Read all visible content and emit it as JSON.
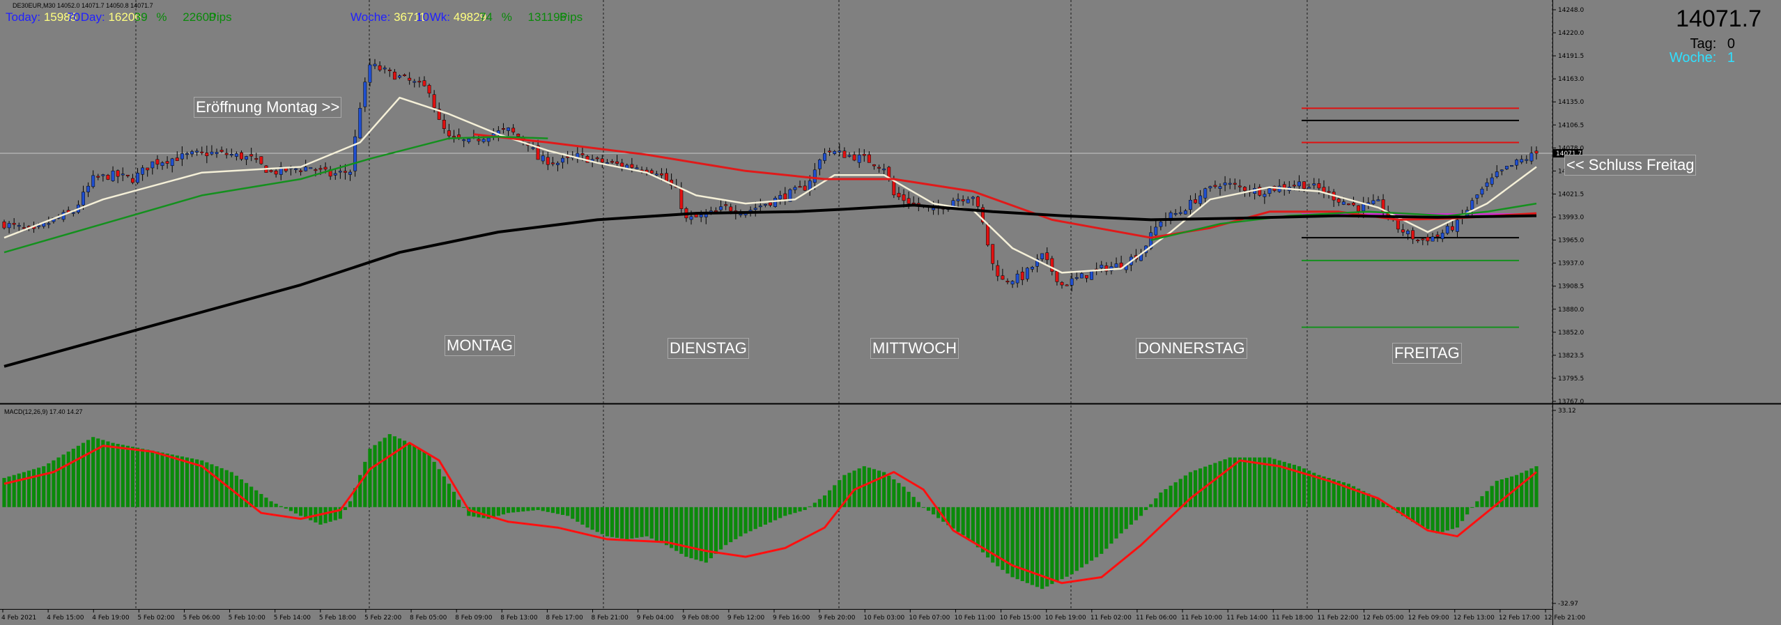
{
  "symbol_info": "DE30EUR,M30  14052.0 14071.7 14050.8 14071.7",
  "top_info": {
    "today": {
      "label": "Today:",
      "v1": "15985",
      "v2": "70",
      "day_label": "Day:",
      "v3": "16206",
      "v4": "39",
      "pct": "%",
      "v5": "22600",
      "pips": "Pips"
    },
    "week": {
      "label": "Woche:",
      "v1": "36711",
      "v2": "10",
      "wk_label": "Wk:",
      "v3": "49829",
      "v4": "74",
      "pct": "%",
      "v5": "131196",
      "pips": "Pips"
    }
  },
  "right_info": {
    "price": "14071.7",
    "tag_label": "Tag:",
    "tag_value": "0",
    "woche_label": "Woche:",
    "woche_value": "1"
  },
  "annotations": {
    "eroeffnung": "Eröffnung Montag >>",
    "schluss": "<< Schluss Freitag",
    "days": [
      "MONTAG",
      "DIENSTAG",
      "MITTWOCH",
      "DONNERSTAG",
      "FREITAG"
    ]
  },
  "macd_label": "MACD(12,26,9) 17.40 14.27",
  "colors": {
    "background": "#808080",
    "bull": "#1f4fd0",
    "bear": "#e01010",
    "ma_fast": "#f5f0d8",
    "ma_mid": "#e01a1a",
    "ma_green": "#14901e",
    "ma_slow": "#000000",
    "macd_hist": "#0a8a0a",
    "macd_signal": "#ff1010"
  },
  "chart_data": [
    {
      "type": "candlestick",
      "title": "",
      "price_axis_ticks": [
        "14248.0",
        "14220.0",
        "14191.5",
        "14163.0",
        "14135.0",
        "14106.5",
        "14078.0",
        "14050.0",
        "14021.5",
        "13993.0",
        "13965.0",
        "13937.0",
        "13908.5",
        "13880.0",
        "13852.0",
        "13823.5",
        "13795.5",
        "13767.0"
      ],
      "ylim": [
        13767.0,
        14248.0
      ],
      "last_price": 14071.7,
      "time_axis_ticks": [
        "4 Feb 2021",
        "4 Feb 15:00",
        "4 Feb 19:00",
        "5 Feb 02:00",
        "5 Feb 06:00",
        "5 Feb 10:00",
        "5 Feb 14:00",
        "5 Feb 18:00",
        "5 Feb 22:00",
        "8 Feb 05:00",
        "8 Feb 09:00",
        "8 Feb 13:00",
        "8 Feb 17:00",
        "8 Feb 21:00",
        "9 Feb 04:00",
        "9 Feb 08:00",
        "9 Feb 12:00",
        "9 Feb 16:00",
        "9 Feb 20:00",
        "10 Feb 03:00",
        "10 Feb 07:00",
        "10 Feb 11:00",
        "10 Feb 15:00",
        "10 Feb 19:00",
        "11 Feb 02:00",
        "11 Feb 06:00",
        "11 Feb 10:00",
        "11 Feb 14:00",
        "11 Feb 18:00",
        "11 Feb 22:00",
        "12 Feb 05:00",
        "12 Feb 09:00",
        "12 Feb 13:00",
        "12 Feb 17:00",
        "12 Feb 21:00"
      ],
      "close_path": [
        [
          0,
          13985
        ],
        [
          6,
          13975
        ],
        [
          10,
          13990
        ],
        [
          14,
          14000
        ],
        [
          18,
          14040
        ],
        [
          22,
          14045
        ],
        [
          26,
          14040
        ],
        [
          30,
          14060
        ],
        [
          34,
          14065
        ],
        [
          38,
          14070
        ],
        [
          42,
          14072
        ],
        [
          46,
          14070
        ],
        [
          50,
          14065
        ],
        [
          54,
          14048
        ],
        [
          58,
          14052
        ],
        [
          62,
          14055
        ],
        [
          66,
          14045
        ],
        [
          70,
          14050
        ],
        [
          72,
          14130
        ],
        [
          74,
          14180
        ],
        [
          78,
          14170
        ],
        [
          82,
          14160
        ],
        [
          86,
          14150
        ],
        [
          88,
          14110
        ],
        [
          90,
          14090
        ],
        [
          94,
          14085
        ],
        [
          98,
          14095
        ],
        [
          102,
          14100
        ],
        [
          106,
          14085
        ],
        [
          108,
          14065
        ],
        [
          112,
          14060
        ],
        [
          116,
          14068
        ],
        [
          120,
          14062
        ],
        [
          124,
          14058
        ],
        [
          128,
          14055
        ],
        [
          132,
          14050
        ],
        [
          136,
          14025
        ],
        [
          138,
          13990
        ],
        [
          142,
          13995
        ],
        [
          146,
          14005
        ],
        [
          150,
          14000
        ],
        [
          154,
          14010
        ],
        [
          158,
          14020
        ],
        [
          162,
          14030
        ],
        [
          164,
          14050
        ],
        [
          166,
          14075
        ],
        [
          170,
          14070
        ],
        [
          174,
          14065
        ],
        [
          178,
          14055
        ],
        [
          180,
          14020
        ],
        [
          184,
          14010
        ],
        [
          188,
          14000
        ],
        [
          192,
          14015
        ],
        [
          196,
          14020
        ],
        [
          198,
          13985
        ],
        [
          200,
          13935
        ],
        [
          202,
          13915
        ],
        [
          206,
          13920
        ],
        [
          210,
          13945
        ],
        [
          214,
          13910
        ],
        [
          218,
          13920
        ],
        [
          222,
          13930
        ],
        [
          226,
          13935
        ],
        [
          230,
          13950
        ],
        [
          234,
          13990
        ],
        [
          238,
          14000
        ],
        [
          242,
          14020
        ],
        [
          246,
          14035
        ],
        [
          250,
          14030
        ],
        [
          254,
          14025
        ],
        [
          258,
          14030
        ],
        [
          262,
          14035
        ],
        [
          266,
          14028
        ],
        [
          270,
          14015
        ],
        [
          274,
          14005
        ],
        [
          278,
          14010
        ],
        [
          282,
          13980
        ],
        [
          286,
          13965
        ],
        [
          290,
          13970
        ],
        [
          294,
          13985
        ],
        [
          298,
          14020
        ],
        [
          302,
          14045
        ],
        [
          306,
          14060
        ],
        [
          310,
          14071.7
        ]
      ],
      "series": [
        {
          "name": "",
          "kind": "ma",
          "points": [
            [
              0,
              13968
            ],
            [
              20,
              14015
            ],
            [
              40,
              14048
            ],
            [
              60,
              14055
            ],
            [
              72,
              14085
            ],
            [
              80,
              14140
            ],
            [
              90,
              14120
            ],
            [
              100,
              14095
            ],
            [
              110,
              14075
            ],
            [
              120,
              14060
            ],
            [
              130,
              14048
            ],
            [
              140,
              14020
            ],
            [
              150,
              14010
            ],
            [
              160,
              14015
            ],
            [
              168,
              14045
            ],
            [
              178,
              14045
            ],
            [
              188,
              14010
            ],
            [
              196,
              14002
            ],
            [
              204,
              13955
            ],
            [
              214,
              13925
            ],
            [
              226,
              13930
            ],
            [
              236,
              13975
            ],
            [
              244,
              14015
            ],
            [
              256,
              14030
            ],
            [
              266,
              14025
            ],
            [
              278,
              14005
            ],
            [
              288,
              13975
            ],
            [
              300,
              14010
            ],
            [
              310,
              14055
            ]
          ]
        },
        {
          "name": "",
          "kind": "ma",
          "points": [
            [
              95,
              14095
            ],
            [
              110,
              14085
            ],
            [
              130,
              14070
            ],
            [
              150,
              14050
            ],
            [
              166,
              14040
            ],
            [
              180,
              14040
            ],
            [
              196,
              14025
            ],
            [
              212,
              13990
            ],
            [
              232,
              13968
            ],
            [
              244,
              13980
            ],
            [
              256,
              14000
            ],
            [
              270,
              14000
            ],
            [
              282,
              13990
            ],
            [
              294,
              13992
            ],
            [
              310,
              13998
            ]
          ]
        },
        {
          "name": "",
          "kind": "ma",
          "points": [
            [
              0,
              13950
            ],
            [
              20,
              13985
            ],
            [
              40,
              14020
            ],
            [
              60,
              14040
            ],
            [
              74,
              14065
            ],
            [
              90,
              14090
            ],
            [
              100,
              14092
            ],
            [
              110,
              14090
            ]
          ]
        },
        {
          "name": "",
          "kind": "ma",
          "points": [
            [
              232,
              13965
            ],
            [
              246,
              13985
            ],
            [
              260,
              13995
            ],
            [
              276,
              14000
            ],
            [
              292,
              13995
            ],
            [
              300,
              14000
            ],
            [
              310,
              14010
            ]
          ]
        },
        {
          "name": "",
          "kind": "ma",
          "points": [
            [
              0,
              13810
            ],
            [
              30,
              13860
            ],
            [
              60,
              13910
            ],
            [
              80,
              13950
            ],
            [
              100,
              13975
            ],
            [
              120,
              13990
            ],
            [
              140,
              13998
            ],
            [
              160,
              14000
            ],
            [
              170,
              14003
            ],
            [
              184,
              14008
            ],
            [
              200,
              14000
            ],
            [
              214,
              13995
            ],
            [
              232,
              13990
            ],
            [
              250,
              13992
            ],
            [
              270,
              13995
            ],
            [
              290,
              13993
            ],
            [
              310,
              13995
            ]
          ]
        }
      ],
      "horizontal_levels": [
        {
          "price": 14127,
          "color": "#e01010"
        },
        {
          "price": 14112,
          "color": "#000000"
        },
        {
          "price": 14085,
          "color": "#e01010"
        },
        {
          "price": 13997,
          "color": "#e020e0"
        },
        {
          "price": 13968,
          "color": "#000000"
        },
        {
          "price": 13940,
          "color": "#14901e"
        },
        {
          "price": 13858,
          "color": "#14901e"
        }
      ]
    },
    {
      "type": "bar",
      "title": "MACD(12,26,9) 17.40 14.27",
      "ylim": [
        -32.97,
        33.12
      ],
      "axis_ticks": [
        "33.12",
        "-32.97"
      ],
      "histogram_path": [
        [
          0,
          10
        ],
        [
          8,
          14
        ],
        [
          14,
          20
        ],
        [
          18,
          24
        ],
        [
          22,
          22
        ],
        [
          28,
          20
        ],
        [
          34,
          18
        ],
        [
          40,
          16
        ],
        [
          46,
          12
        ],
        [
          54,
          2
        ],
        [
          60,
          -3
        ],
        [
          64,
          -6
        ],
        [
          68,
          -4
        ],
        [
          70,
          2
        ],
        [
          74,
          20
        ],
        [
          78,
          25
        ],
        [
          82,
          22
        ],
        [
          86,
          18
        ],
        [
          90,
          8
        ],
        [
          94,
          -3
        ],
        [
          98,
          -4
        ],
        [
          102,
          -2
        ],
        [
          108,
          -1
        ],
        [
          114,
          -3
        ],
        [
          118,
          -7
        ],
        [
          122,
          -10
        ],
        [
          126,
          -11
        ],
        [
          130,
          -10
        ],
        [
          134,
          -13
        ],
        [
          138,
          -17
        ],
        [
          142,
          -19
        ],
        [
          146,
          -13
        ],
        [
          150,
          -9
        ],
        [
          154,
          -6
        ],
        [
          158,
          -3
        ],
        [
          162,
          -1
        ],
        [
          166,
          4
        ],
        [
          170,
          11
        ],
        [
          174,
          14
        ],
        [
          178,
          12
        ],
        [
          182,
          7
        ],
        [
          186,
          0
        ],
        [
          190,
          -5
        ],
        [
          196,
          -12
        ],
        [
          200,
          -19
        ],
        [
          204,
          -24
        ],
        [
          210,
          -28
        ],
        [
          216,
          -23
        ],
        [
          222,
          -16
        ],
        [
          226,
          -9
        ],
        [
          230,
          -3
        ],
        [
          234,
          5
        ],
        [
          240,
          12
        ],
        [
          248,
          17
        ],
        [
          256,
          17
        ],
        [
          262,
          14
        ],
        [
          266,
          11
        ],
        [
          272,
          8
        ],
        [
          278,
          3
        ],
        [
          282,
          -2
        ],
        [
          286,
          -6
        ],
        [
          290,
          -9
        ],
        [
          294,
          -7
        ],
        [
          298,
          2
        ],
        [
          302,
          9
        ],
        [
          306,
          11
        ],
        [
          310,
          14
        ]
      ],
      "signal_path": [
        [
          0,
          8
        ],
        [
          10,
          12
        ],
        [
          20,
          21
        ],
        [
          30,
          19
        ],
        [
          40,
          14
        ],
        [
          46,
          6
        ],
        [
          52,
          -2
        ],
        [
          60,
          -4
        ],
        [
          68,
          -1
        ],
        [
          74,
          13
        ],
        [
          82,
          22
        ],
        [
          88,
          16
        ],
        [
          94,
          -1
        ],
        [
          102,
          -5
        ],
        [
          112,
          -7
        ],
        [
          122,
          -11
        ],
        [
          134,
          -12
        ],
        [
          142,
          -15
        ],
        [
          150,
          -17
        ],
        [
          158,
          -14
        ],
        [
          166,
          -7
        ],
        [
          172,
          6
        ],
        [
          180,
          12
        ],
        [
          186,
          6
        ],
        [
          192,
          -8
        ],
        [
          204,
          -20
        ],
        [
          214,
          -26
        ],
        [
          222,
          -24
        ],
        [
          230,
          -13
        ],
        [
          240,
          3
        ],
        [
          250,
          16
        ],
        [
          258,
          14
        ],
        [
          268,
          9
        ],
        [
          278,
          3
        ],
        [
          288,
          -8
        ],
        [
          294,
          -10
        ],
        [
          302,
          1
        ],
        [
          310,
          12
        ]
      ]
    }
  ]
}
